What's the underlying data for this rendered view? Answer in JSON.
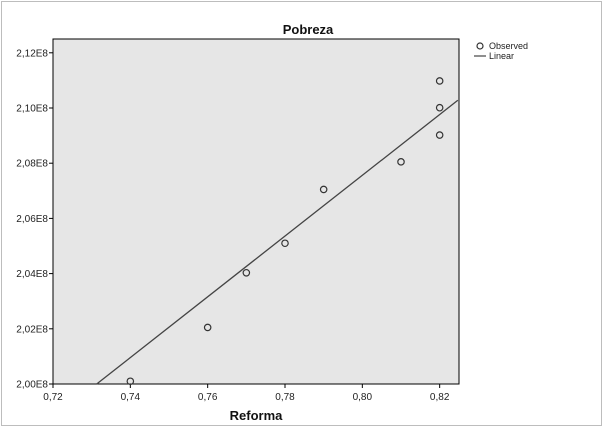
{
  "chart_data": {
    "type": "scatter",
    "title": "Pobreza",
    "xlabel": "Reforma",
    "ylabel": "",
    "xlim": [
      0.72,
      0.825
    ],
    "ylim": [
      200000000.0,
      212500000.0
    ],
    "x_ticks": [
      0.72,
      0.74,
      0.76,
      0.78,
      0.8,
      0.82
    ],
    "x_tick_labels": [
      "0,72",
      "0,74",
      "0,76",
      "0,78",
      "0,80",
      "0,82"
    ],
    "y_ticks": [
      200000000.0,
      202000000.0,
      204000000.0,
      206000000.0,
      208000000.0,
      210000000.0,
      212000000.0
    ],
    "y_tick_labels": [
      "2,00E8",
      "2,02E8",
      "2,04E8",
      "2,06E8",
      "2,08E8",
      "2,10E8",
      "2,12E8"
    ],
    "grid": false,
    "legend_position": "right",
    "series": [
      {
        "name": "Observed",
        "kind": "points",
        "x": [
          0.74,
          0.76,
          0.77,
          0.78,
          0.79,
          0.81,
          0.82,
          0.82,
          0.82
        ],
        "y": [
          200100000.0,
          202050000.0,
          204030000.0,
          205100000.0,
          207050000.0,
          208050000.0,
          210980000.0,
          210010000.0,
          209020000.0
        ]
      },
      {
        "name": "Linear",
        "kind": "line",
        "x": [
          0.7313,
          0.8247
        ],
        "y": [
          200000000.0,
          210280000.0
        ]
      }
    ],
    "colors": {
      "plot_background": "#e6e6e6",
      "points": "#333333",
      "line": "#444444"
    }
  }
}
